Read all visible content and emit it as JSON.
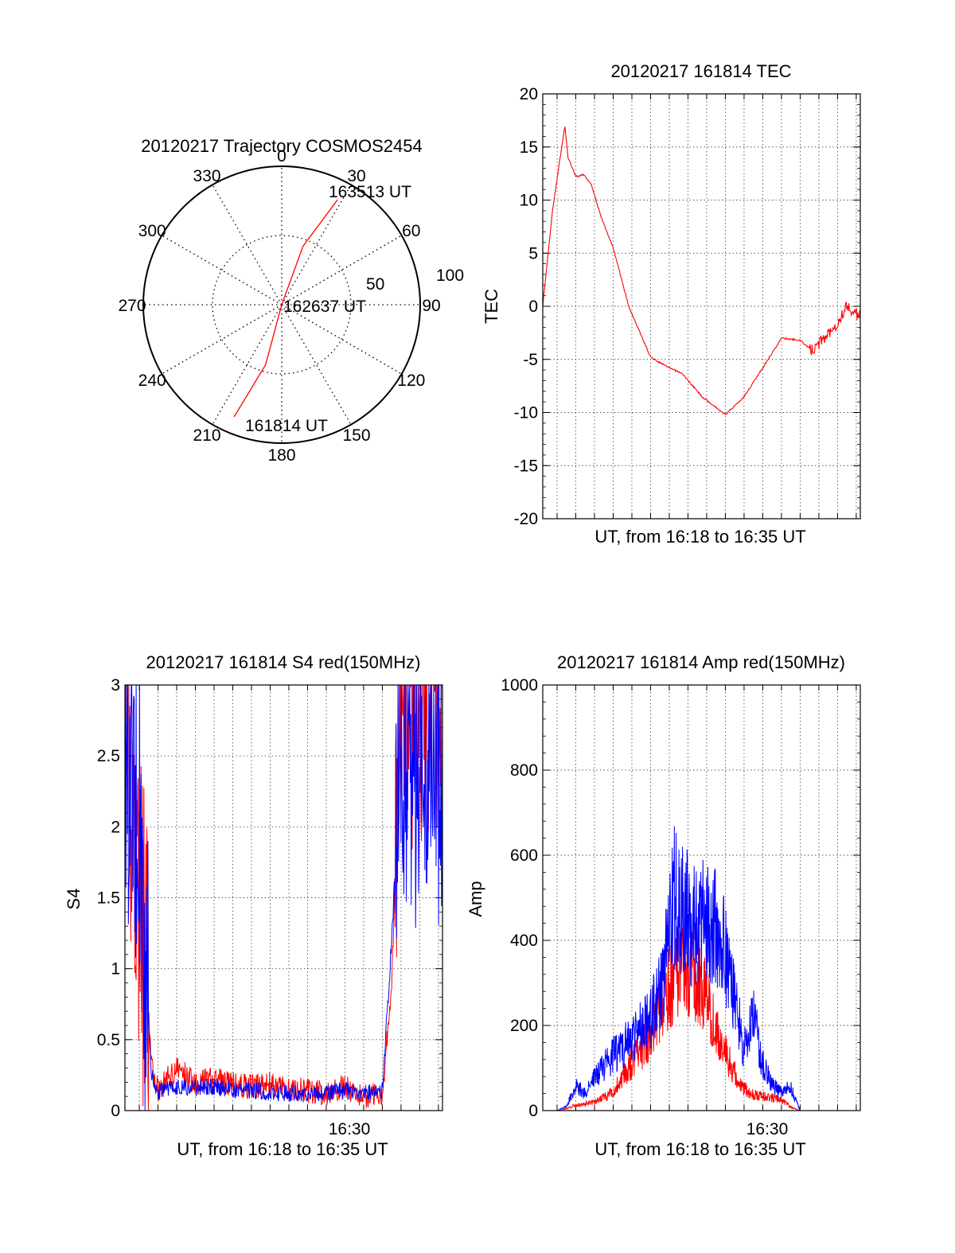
{
  "polar": {
    "title": "20120217 Trajectory COSMOS2454",
    "angle_labels": [
      "0",
      "30",
      "60",
      "90",
      "120",
      "150",
      "180",
      "210",
      "240",
      "270",
      "300",
      "330"
    ],
    "ring_labels": [
      "50",
      "100"
    ],
    "point_labels": {
      "start": "161814 UT",
      "center": "162637 UT",
      "end": "163513 UT"
    },
    "trajectory_color": "#ff0000"
  },
  "tec": {
    "title": "20120217 161814 TEC",
    "ylabel": "TEC",
    "xlabel": "UT, from 16:18 to 16:35 UT",
    "y_ticks": [
      "20",
      "15",
      "10",
      "5",
      "0",
      "-5",
      "-10",
      "-15",
      "-20"
    ],
    "x_tick_labels": []
  },
  "s4": {
    "title": "20120217 161814 S4 red(150MHz)",
    "ylabel": "S4",
    "xlabel": "UT, from 16:18 to 16:35 UT",
    "y_ticks": [
      "3",
      "2.5",
      "2",
      "1.5",
      "1",
      "0.5",
      "0"
    ],
    "x_tick_labels": [
      "16:30"
    ]
  },
  "amp": {
    "title": "20120217 161814 Amp red(150MHz)",
    "ylabel": "Amp",
    "xlabel": "UT, from 16:18 to 16:35 UT",
    "y_ticks": [
      "1000",
      "800",
      "600",
      "400",
      "200",
      "0"
    ],
    "x_tick_labels": [
      "16:30"
    ]
  },
  "chart_data": [
    {
      "type": "polar",
      "title": "20120217 Trajectory COSMOS2454",
      "r_range": [
        0,
        100
      ],
      "angle_direction": "clockwise from top",
      "series": [
        {
          "color": "#ff0000",
          "points": [
            {
              "az": 203,
              "r": 88,
              "t": "161814 UT"
            },
            {
              "az": 195,
              "r": 45
            },
            {
              "az": 0,
              "r": 0,
              "t": "162637 UT"
            },
            {
              "az": 20,
              "r": 45
            },
            {
              "az": 28,
              "r": 86,
              "t": "163513 UT"
            }
          ]
        }
      ]
    },
    {
      "type": "line",
      "title": "20120217 161814 TEC",
      "xlabel": "UT, from 16:18 to 16:35 UT",
      "ylabel": "TEC",
      "xlim": [
        "16:18:14",
        "16:35:13"
      ],
      "ylim": [
        -20,
        20
      ],
      "grid": true,
      "series": [
        {
          "color": "#ff0000",
          "x": [
            "16:18:14",
            "16:18:45",
            "16:19:10",
            "16:19:25",
            "16:19:35",
            "16:20:00",
            "16:20:25",
            "16:20:50",
            "16:21:20",
            "16:22:00",
            "16:22:50",
            "16:24:00",
            "16:25:00",
            "16:25:40",
            "16:26:45",
            "16:28:00",
            "16:29:00",
            "16:30:00",
            "16:31:00",
            "16:32:00",
            "16:32:40",
            "16:33:30",
            "16:34:00",
            "16:34:30",
            "16:35:13"
          ],
          "values": [
            0,
            9,
            14,
            17,
            14,
            12.2,
            12.4,
            11.5,
            8.5,
            5.5,
            0,
            -4.8,
            -5.8,
            -6.3,
            -8.5,
            -10.2,
            -8.5,
            -5.8,
            -3,
            -3.2,
            -4.2,
            -2.5,
            -1.5,
            0,
            -1
          ]
        }
      ]
    },
    {
      "type": "line",
      "title": "20120217 161814 S4 red(150MHz)",
      "xlabel": "UT, from 16:18 to 16:35 UT",
      "ylabel": "S4",
      "xlim": [
        "16:18:14",
        "16:35:13"
      ],
      "x_ticks": [
        "16:30"
      ],
      "ylim": [
        0,
        3
      ],
      "grid": true,
      "series": [
        {
          "color": "#ff0000",
          "x": [
            "16:18:14",
            "16:18:30",
            "16:19:00",
            "16:19:20",
            "16:19:40",
            "16:20:00",
            "16:21:00",
            "16:22:00",
            "16:23:00",
            "16:24:00",
            "16:25:00",
            "16:26:00",
            "16:27:00",
            "16:28:00",
            "16:29:00",
            "16:30:00",
            "16:30:40",
            "16:31:00",
            "16:32:00",
            "16:32:30",
            "16:33:00",
            "16:34:00",
            "16:35:13"
          ],
          "values": [
            3,
            2.3,
            1.5,
            1.0,
            0.3,
            0.15,
            0.3,
            0.2,
            0.22,
            0.18,
            0.17,
            0.18,
            0.15,
            0.14,
            0.12,
            0.17,
            0.12,
            0.1,
            0.12,
            0.9,
            3,
            3,
            3
          ]
        },
        {
          "color": "#0000ff",
          "x": [
            "16:18:14",
            "16:18:30",
            "16:19:00",
            "16:19:20",
            "16:19:40",
            "16:20:00",
            "16:21:00",
            "16:22:00",
            "16:23:00",
            "16:24:00",
            "16:25:00",
            "16:26:00",
            "16:27:00",
            "16:28:00",
            "16:29:00",
            "16:30:00",
            "16:30:40",
            "16:31:00",
            "16:32:00",
            "16:32:30",
            "16:33:00",
            "16:34:00",
            "16:35:13"
          ],
          "values": [
            2.6,
            2.4,
            2.1,
            1.0,
            0.25,
            0.13,
            0.17,
            0.16,
            0.17,
            0.15,
            0.14,
            0.13,
            0.12,
            0.12,
            0.13,
            0.14,
            0.13,
            0.12,
            0.14,
            1.2,
            2.6,
            2.4,
            2.5
          ]
        }
      ]
    },
    {
      "type": "line",
      "title": "20120217 161814 Amp red(150MHz)",
      "xlabel": "UT, from 16:18 to 16:35 UT",
      "ylabel": "Amp",
      "xlim": [
        "16:18:14",
        "16:35:13"
      ],
      "x_ticks": [
        "16:30"
      ],
      "ylim": [
        0,
        1000
      ],
      "grid": true,
      "series": [
        {
          "color": "#ff0000",
          "x": [
            "16:18:14",
            "16:19:00",
            "16:19:30",
            "16:20:00",
            "16:21:00",
            "16:22:00",
            "16:23:00",
            "16:24:00",
            "16:24:40",
            "16:25:20",
            "16:25:40",
            "16:26:00",
            "16:26:20",
            "16:26:40",
            "16:27:00",
            "16:27:40",
            "16:28:20",
            "16:29:00",
            "16:29:40",
            "16:30:20",
            "16:31:00",
            "16:31:30",
            "16:32:00",
            "16:33:00",
            "16:35:13"
          ],
          "values": [
            0,
            0,
            5,
            12,
            20,
            45,
            110,
            180,
            260,
            320,
            340,
            330,
            310,
            290,
            260,
            180,
            100,
            50,
            35,
            32,
            25,
            8,
            0,
            0,
            0
          ]
        },
        {
          "color": "#0000ff",
          "x": [
            "16:18:14",
            "16:19:00",
            "16:19:30",
            "16:20:00",
            "16:20:30",
            "16:21:00",
            "16:22:00",
            "16:23:00",
            "16:24:00",
            "16:24:40",
            "16:25:00",
            "16:25:20",
            "16:25:40",
            "16:26:00",
            "16:26:30",
            "16:27:00",
            "16:27:30",
            "16:28:00",
            "16:28:30",
            "16:29:00",
            "16:29:30",
            "16:30:00",
            "16:30:30",
            "16:31:00",
            "16:31:30",
            "16:32:00",
            "16:33:00",
            "16:35:13"
          ],
          "values": [
            0,
            0,
            10,
            60,
            40,
            80,
            130,
            170,
            220,
            300,
            430,
            520,
            480,
            450,
            420,
            470,
            440,
            380,
            250,
            150,
            220,
            110,
            60,
            45,
            55,
            0,
            0,
            0
          ]
        }
      ]
    }
  ]
}
